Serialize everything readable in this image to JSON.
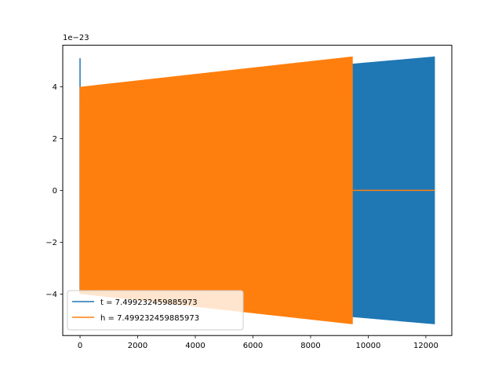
{
  "chart_data": {
    "type": "line",
    "title": "",
    "xlabel": "",
    "ylabel": "",
    "y_offset_label": "1e−23",
    "xlim": [
      -600,
      12900
    ],
    "ylim": [
      -5.6,
      5.6
    ],
    "x_ticks": [
      0,
      2000,
      4000,
      6000,
      8000,
      10000,
      12000
    ],
    "x_tick_labels": [
      "0",
      "2000",
      "4000",
      "6000",
      "8000",
      "10000",
      "12000"
    ],
    "y_ticks": [
      -4,
      -2,
      0,
      2,
      4
    ],
    "y_tick_labels": [
      "−4",
      "−2",
      "0",
      "2",
      "4"
    ],
    "grid": false,
    "legend_position": "lower-left",
    "series": [
      {
        "name": "t = 7.499232459885973",
        "color": "#1f77b4",
        "style": "oscillation envelope",
        "x_start": 0,
        "x_end": 12300,
        "amplitude_start": 3.95,
        "amplitude_end": 5.15,
        "initial_spike": 5.1
      },
      {
        "name": "h = 7.499232459885973",
        "color": "#ff7f0e",
        "style": "oscillation envelope then flat",
        "x_start": 0,
        "x_end": 9450,
        "amplitude_start": 3.98,
        "amplitude_end": 5.15,
        "flat_x_end": 12300,
        "flat_value": 0
      }
    ]
  }
}
